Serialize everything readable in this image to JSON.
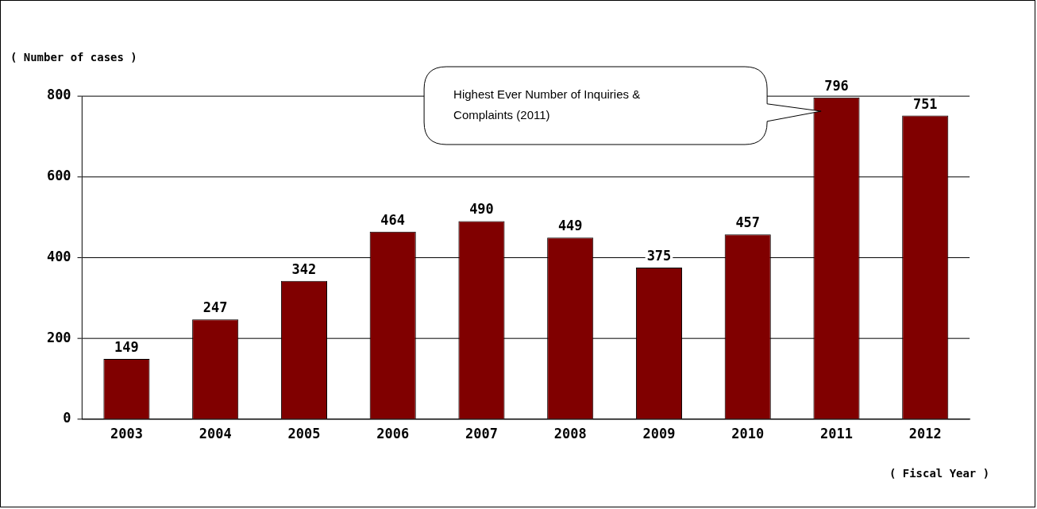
{
  "chart_data": {
    "type": "bar",
    "ylabel": "( Number of cases )",
    "xlabel": "( Fiscal Year )",
    "categories": [
      "2003",
      "2004",
      "2005",
      "2006",
      "2007",
      "2008",
      "2009",
      "2010",
      "2011",
      "2012"
    ],
    "values": [
      149,
      247,
      342,
      464,
      490,
      449,
      375,
      457,
      796,
      751
    ],
    "color": "#800000",
    "ylim": [
      0,
      800
    ],
    "yticks": [
      0,
      200,
      400,
      600,
      800
    ],
    "grid": "y",
    "legend": false,
    "data_labels": true,
    "annotations": [
      "Highest Ever Number of Inquiries & Complaints (2011)"
    ]
  }
}
